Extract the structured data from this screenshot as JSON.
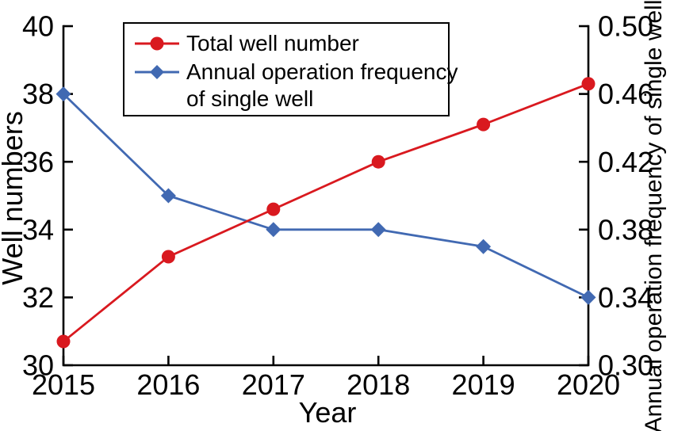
{
  "figure": {
    "background": "#ffffff",
    "axis_color": "#000000",
    "legend": {
      "items": [
        {
          "label": "Total well number",
          "label_line1": "Total well number",
          "label_line2": "",
          "marker": "circle",
          "color": "#d9191f"
        },
        {
          "label": "Annual operation frequency of single well",
          "label_line1": "Annual operation frequency",
          "label_line2": "of single well",
          "marker": "diamond",
          "color": "#4169b2"
        }
      ]
    }
  },
  "chart_data": {
    "type": "line",
    "title": "",
    "xlabel": "Year",
    "ylabel_left": "Well numbers",
    "ylabel_right": "Annual operation frequency of single well",
    "x": [
      2015,
      2016,
      2017,
      2018,
      2019,
      2020
    ],
    "xtick_labels": [
      "2015",
      "2016",
      "2017",
      "2018",
      "2019",
      "2020"
    ],
    "ylim_left": [
      30,
      40
    ],
    "yticks_left": [
      40,
      38,
      36,
      34,
      32,
      30
    ],
    "ytick_labels_left": [
      "40",
      "38",
      "36",
      "34",
      "32",
      "30"
    ],
    "ylim_right": [
      0.3,
      0.5
    ],
    "yticks_right": [
      0.5,
      0.46,
      0.42,
      0.38,
      0.34,
      0.3
    ],
    "ytick_labels_right": [
      "0.50",
      "0.46",
      "0.42",
      "0.38",
      "0.34",
      "0.30"
    ],
    "grid": false,
    "legend_position": "top-left-inside",
    "series": [
      {
        "name": "Annual operation frequency of single well",
        "axis": "right",
        "color": "#4169b2",
        "marker": "diamond",
        "values": [
          0.46,
          0.4,
          0.38,
          0.38,
          0.37,
          0.34
        ]
      },
      {
        "name": "Total well number",
        "axis": "left",
        "color": "#d9191f",
        "marker": "circle",
        "values": [
          30.7,
          33.2,
          34.6,
          36.0,
          37.1,
          38.3
        ]
      }
    ]
  }
}
